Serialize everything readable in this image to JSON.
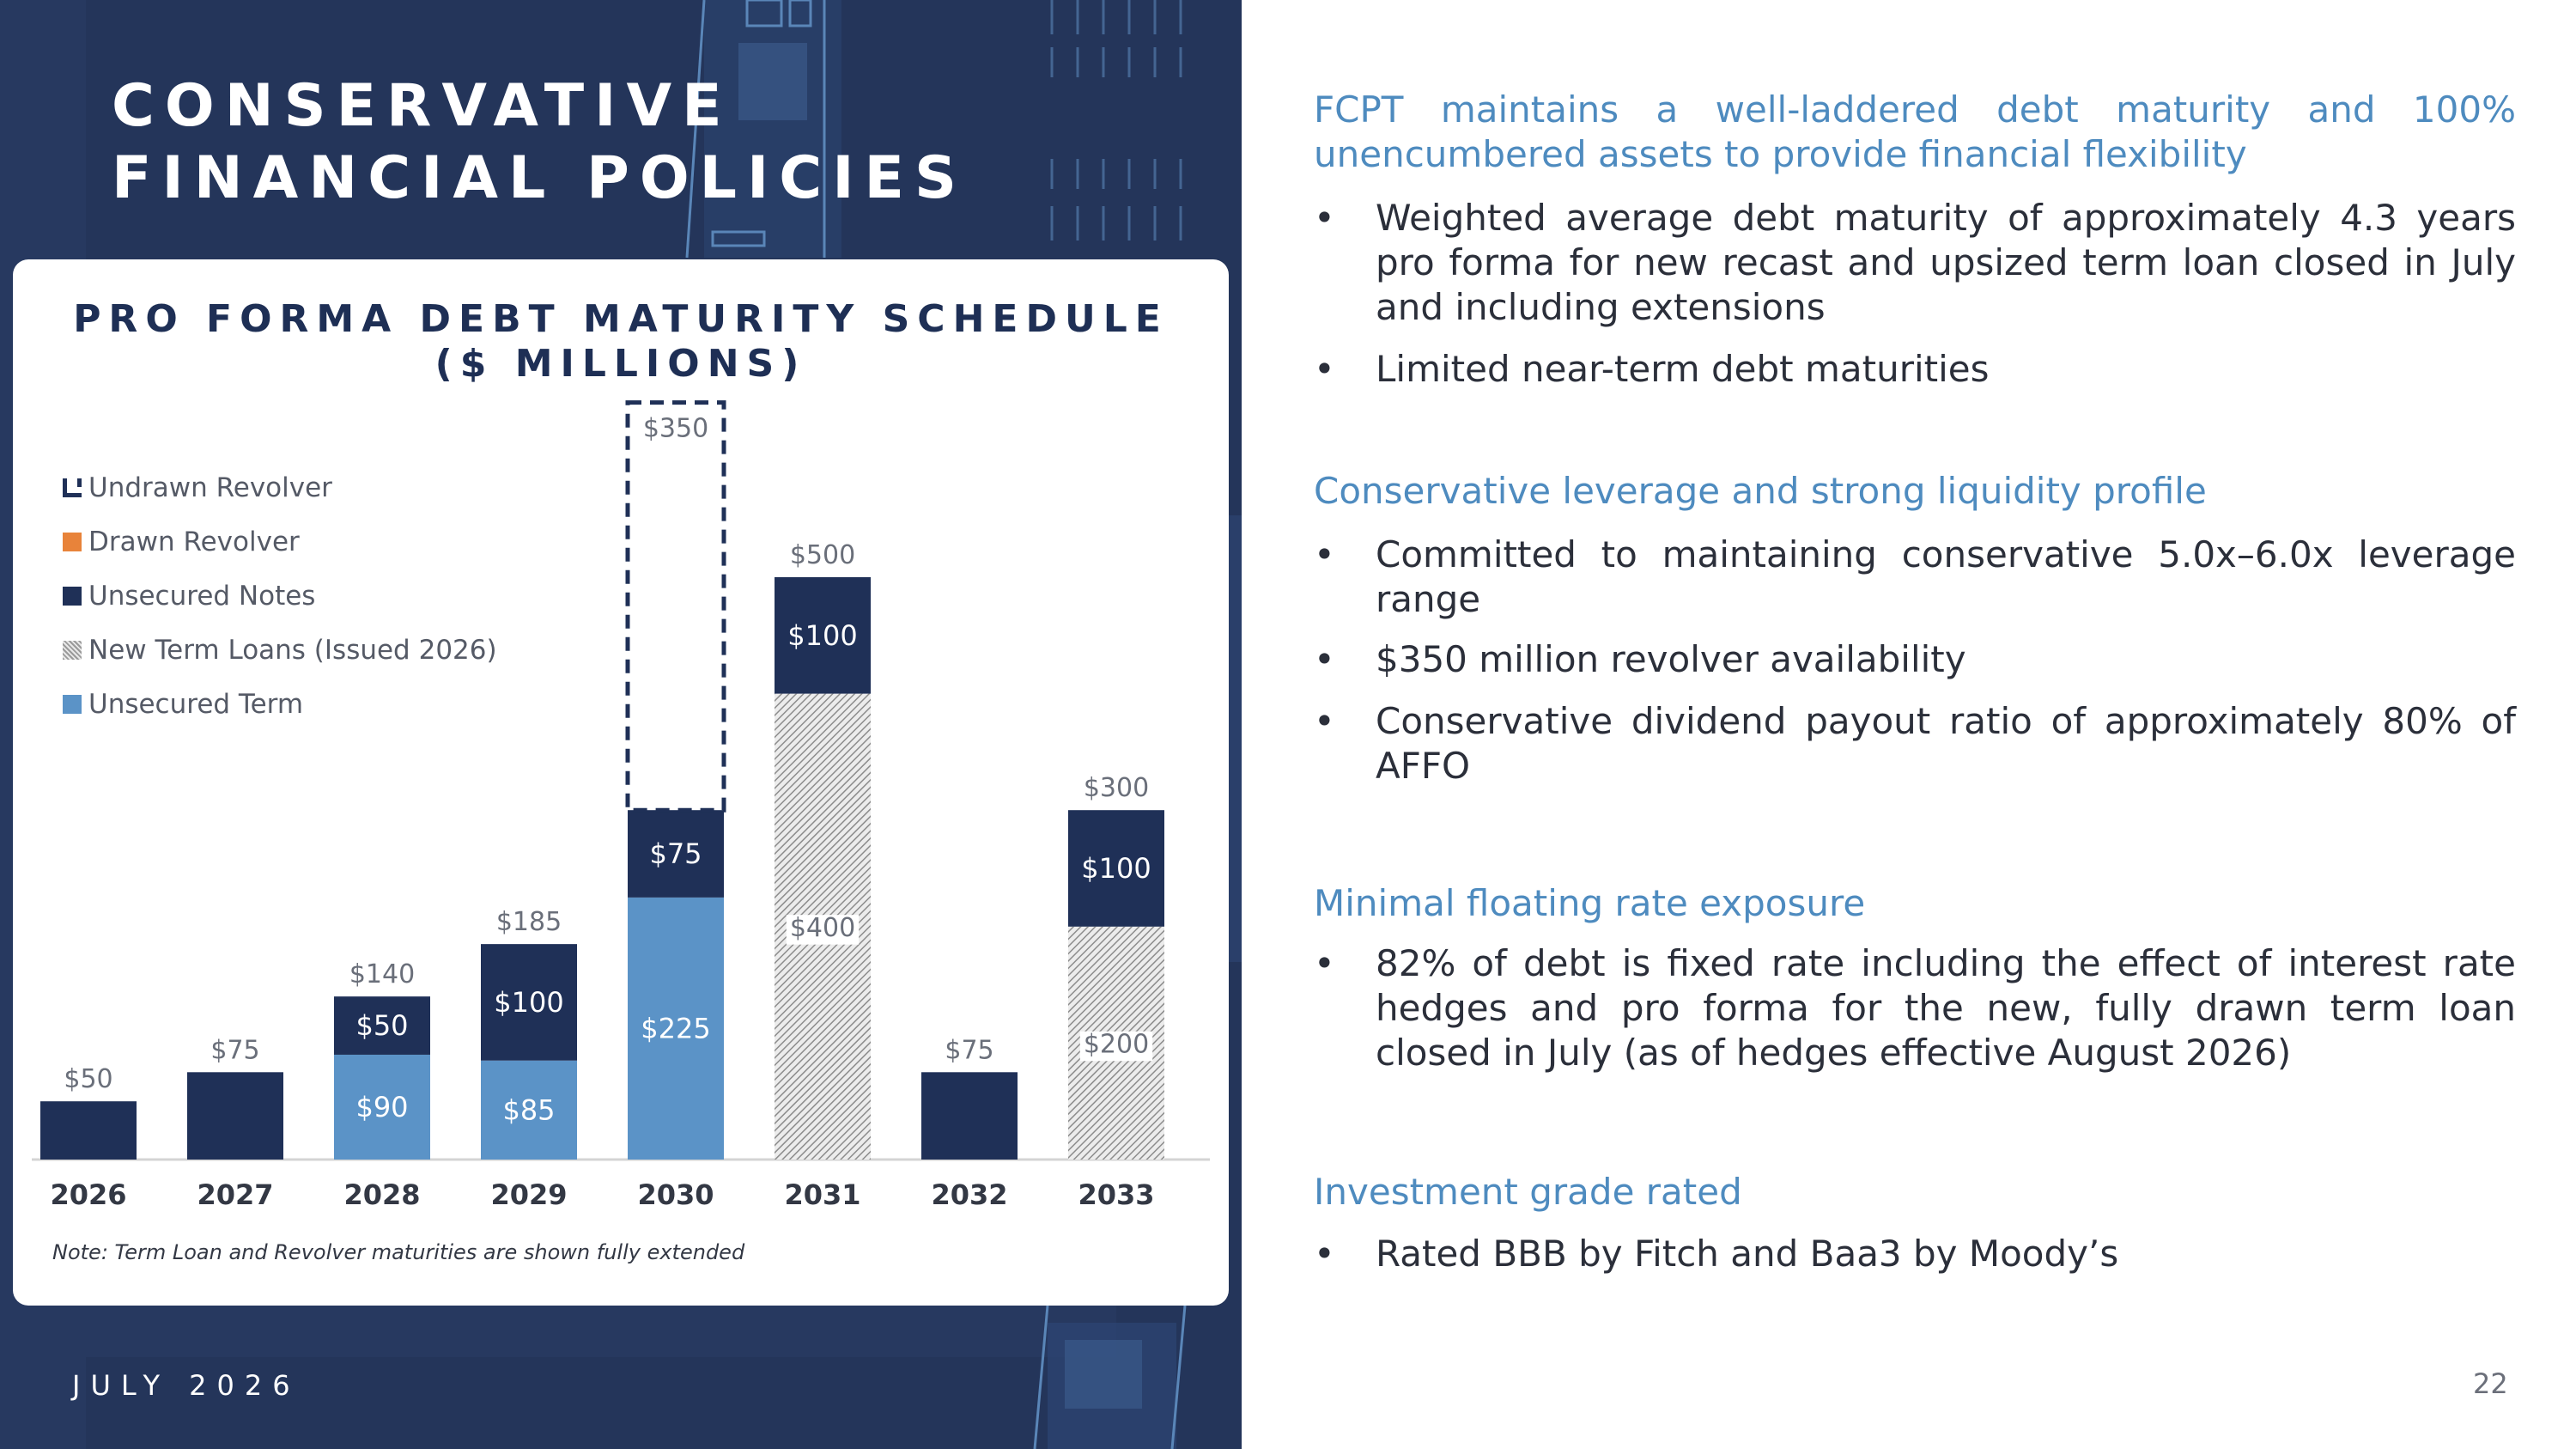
{
  "slide": {
    "title_line1": "CONSERVATIVE",
    "title_line2": "FINANCIAL POLICIES",
    "footer_date": "JULY 2026",
    "page_number": "22"
  },
  "chart_panel": {
    "title_line1": "PRO FORMA DEBT MATURITY SCHEDULE",
    "title_line2": "($ MILLIONS)",
    "note": "Note: Term Loan and Revolver maturities are shown fully extended",
    "legend": [
      {
        "label": "Undrawn Revolver",
        "swatch": "bracket",
        "color": "#1f3057"
      },
      {
        "label": "Drawn Revolver",
        "swatch": "orange",
        "color": "#e8833a"
      },
      {
        "label": "Unsecured Notes",
        "swatch": "navy",
        "color": "#1f3057"
      },
      {
        "label": "New Term Loans (Issued 2026)",
        "swatch": "hatch",
        "color": "#a0a0a0"
      },
      {
        "label": "Unsecured Term",
        "swatch": "blue",
        "color": "#5b93c7"
      }
    ]
  },
  "chart_data": {
    "type": "bar",
    "stacked": true,
    "title": "PRO FORMA DEBT MATURITY SCHEDULE ($ MILLIONS)",
    "categories": [
      "2026",
      "2027",
      "2028",
      "2029",
      "2030",
      "2031",
      "2032",
      "2033"
    ],
    "series": [
      {
        "name": "Unsecured Term",
        "color": "#5b93c7",
        "values": [
          0,
          0,
          90,
          85,
          225,
          0,
          0,
          0
        ]
      },
      {
        "name": "New Term Loans (Issued 2026)",
        "color": "#a0a0a0",
        "values": [
          0,
          0,
          0,
          0,
          0,
          400,
          0,
          200
        ]
      },
      {
        "name": "Unsecured Notes",
        "color": "#1f3057",
        "values": [
          50,
          75,
          50,
          100,
          75,
          100,
          75,
          100
        ]
      },
      {
        "name": "Drawn Revolver",
        "color": "#e8833a",
        "values": [
          0,
          0,
          0,
          0,
          0,
          0,
          0,
          0
        ]
      },
      {
        "name": "Undrawn Revolver",
        "color": "#1f3057",
        "values": [
          0,
          0,
          0,
          0,
          350,
          0,
          0,
          0
        ]
      }
    ],
    "segment_labels": [
      [
        "",
        "",
        "",
        "",
        ""
      ],
      [
        "",
        "",
        "",
        "",
        ""
      ],
      [
        "$90",
        "",
        "$50",
        "",
        ""
      ],
      [
        "$85",
        "",
        "$100",
        "",
        ""
      ],
      [
        "$225",
        "",
        "$75",
        "",
        "$350"
      ],
      [
        "",
        "$400",
        "$100",
        "",
        ""
      ],
      [
        "",
        "",
        "",
        "",
        ""
      ],
      [
        "",
        "$200",
        "$100",
        "",
        ""
      ]
    ],
    "total_labels": [
      "$50",
      "$75",
      "$140",
      "$185",
      "",
      "$500",
      "$75",
      "$300"
    ],
    "ylim": [
      0,
      720
    ],
    "grid": false,
    "legend_position": "top-left"
  },
  "sections": [
    {
      "heading": "FCPT maintains a well-laddered debt maturity and 100% unencumbered assets to provide financial flexibility",
      "bullets": [
        "Weighted average debt maturity of approximately 4.3 years pro forma for new recast and upsized term loan closed in July and including extensions",
        "Limited near-term debt maturities"
      ]
    },
    {
      "heading": "Conservative leverage and strong liquidity profile",
      "bullets": [
        "Committed to maintaining conservative 5.0x–6.0x leverage range",
        "$350 million revolver availability",
        "Conservative dividend payout ratio of approximately 80% of AFFO"
      ]
    },
    {
      "heading": "Minimal floating rate exposure",
      "bullets": [
        "82% of debt is fixed rate including the effect of interest rate hedges and pro forma for the new, fully drawn term loan closed in July (as of hedges effective August 2026)"
      ]
    },
    {
      "heading": "Investment grade rated",
      "bullets": [
        "Rated BBB by Fitch and Baa3 by Moody’s"
      ]
    }
  ],
  "bullet_glyph": "•"
}
